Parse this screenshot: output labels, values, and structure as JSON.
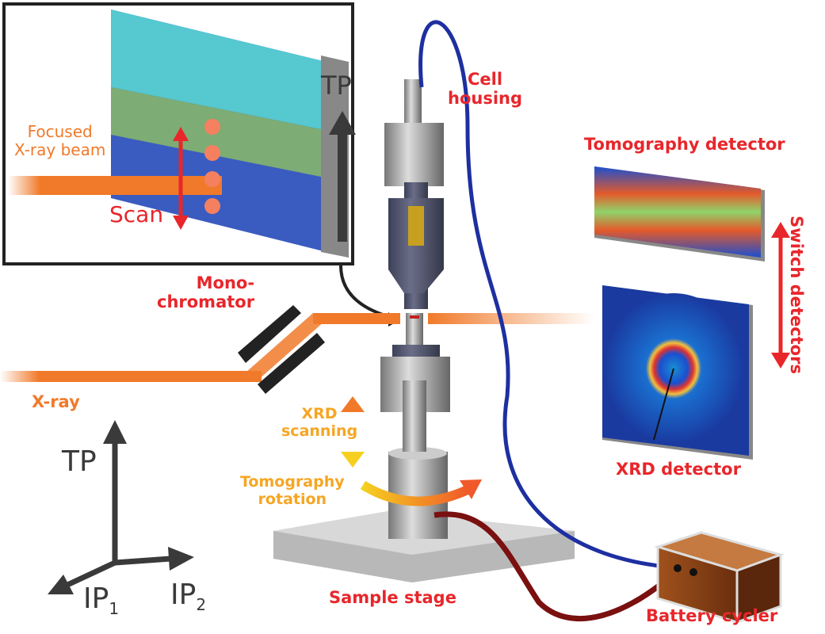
{
  "inset": {
    "beam_label": "Focused\nX-ray beam",
    "scan_label": "Scan",
    "tp_label": "TP"
  },
  "labels": {
    "cell_housing": "Cell\nhousing",
    "tomography_detector": "Tomography detector",
    "switch_detectors": "Switch detectors",
    "monochromator": "Mono-\nchromator",
    "xray": "X-ray",
    "xrd_scanning": "XRD\nscanning",
    "tomography_rotation": "Tomography\nrotation",
    "xrd_detector": "XRD detector",
    "sample_stage": "Sample stage",
    "battery_cycler": "Battery cycler"
  },
  "axes": {
    "tp": "TP",
    "ip1": "IP",
    "ip1_sub": "1",
    "ip2": "IP",
    "ip2_sub": "2"
  },
  "colors": {
    "label_red": "#e8262b",
    "beam_orange": "#f07a2a",
    "xrd_gold": "#f5a623",
    "cable_blue": "#1e2fa0",
    "cable_red": "#7a1010",
    "axis_grey": "#3a3a3a"
  }
}
